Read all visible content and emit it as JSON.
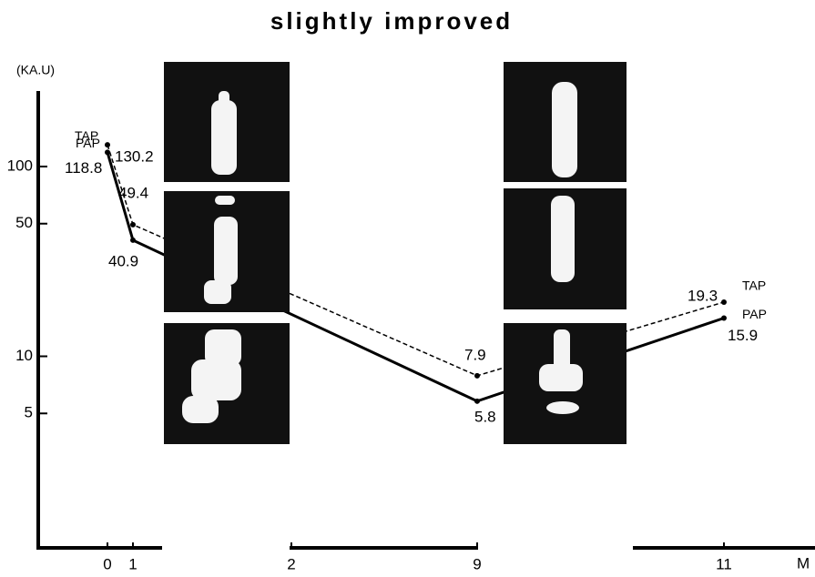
{
  "chart_data": {
    "type": "line",
    "title": "slightly improved",
    "y_label": "(KA.U)",
    "x_label": "M",
    "log_scale_y": true,
    "grid": false,
    "x": [
      0,
      1,
      9,
      11
    ],
    "xticks": [
      0,
      1,
      2,
      9,
      11
    ],
    "ylim": [
      1,
      250
    ],
    "yticks": [
      5,
      10,
      50,
      100
    ],
    "series": [
      {
        "name": "TAP",
        "color": "#000000",
        "dashed": true,
        "values": [
          130.2,
          49.4,
          7.9,
          19.3
        ]
      },
      {
        "name": "PAP",
        "color": "#000000",
        "dashed": false,
        "values": [
          118.8,
          40.9,
          5.8,
          15.9
        ]
      }
    ]
  }
}
